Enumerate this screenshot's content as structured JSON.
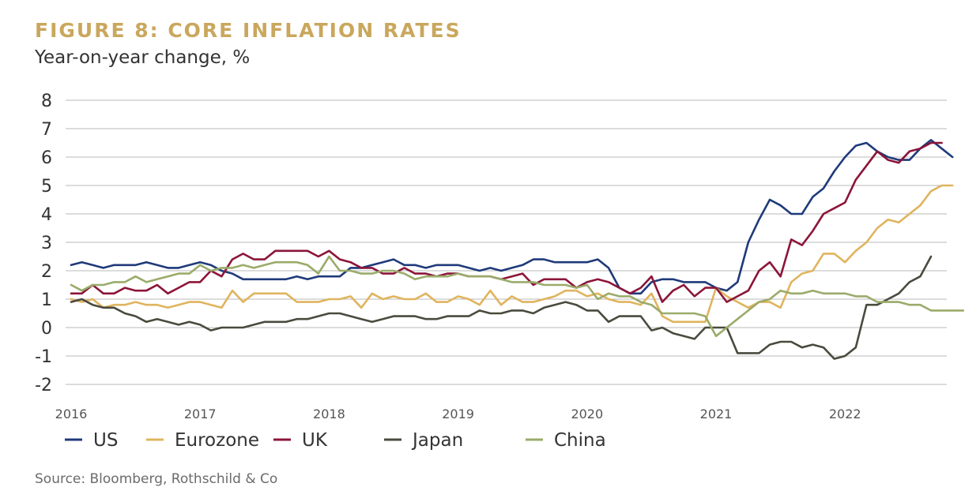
{
  "chart_data": {
    "type": "line",
    "title": "FIGURE 8: CORE INFLATION RATES",
    "subtitle": "Year-on-year change, %",
    "source": "Source: Bloomberg, Rothschild & Co",
    "xlabel": "",
    "ylabel": "Year-on-year change, %",
    "x_start": "2016-01",
    "x_ticks": [
      "2016",
      "2017",
      "2018",
      "2019",
      "2020",
      "2021",
      "2022"
    ],
    "yticks": [
      "8",
      "7",
      "6",
      "5",
      "4",
      "3",
      "2",
      "1",
      "0",
      "-1",
      "-2"
    ],
    "ylim": [
      -2,
      8
    ],
    "grid": true,
    "legend_position": "bottom",
    "series": [
      {
        "name": "US",
        "color": "#1f3a7a",
        "values": [
          2.2,
          2.3,
          2.2,
          2.1,
          2.2,
          2.2,
          2.2,
          2.3,
          2.2,
          2.1,
          2.1,
          2.2,
          2.3,
          2.2,
          2.0,
          1.9,
          1.7,
          1.7,
          1.7,
          1.7,
          1.7,
          1.8,
          1.7,
          1.8,
          1.8,
          1.8,
          2.1,
          2.1,
          2.2,
          2.3,
          2.4,
          2.2,
          2.2,
          2.1,
          2.2,
          2.2,
          2.2,
          2.1,
          2.0,
          2.1,
          2.0,
          2.1,
          2.2,
          2.4,
          2.4,
          2.3,
          2.3,
          2.3,
          2.3,
          2.4,
          2.1,
          1.4,
          1.2,
          1.2,
          1.6,
          1.7,
          1.7,
          1.6,
          1.6,
          1.6,
          1.4,
          1.3,
          1.6,
          3.0,
          3.8,
          4.5,
          4.3,
          4.0,
          4.0,
          4.6,
          4.9,
          5.5,
          6.0,
          6.4,
          6.5,
          6.2,
          6.0,
          5.9,
          5.9,
          6.3,
          6.6,
          6.3,
          6.0
        ]
      },
      {
        "name": "Eurozone",
        "color": "#e0b45e",
        "values": [
          1.0,
          0.9,
          1.0,
          0.7,
          0.8,
          0.8,
          0.9,
          0.8,
          0.8,
          0.7,
          0.8,
          0.9,
          0.9,
          0.8,
          0.7,
          1.3,
          0.9,
          1.2,
          1.2,
          1.2,
          1.2,
          0.9,
          0.9,
          0.9,
          1.0,
          1.0,
          1.1,
          0.7,
          1.2,
          1.0,
          1.1,
          1.0,
          1.0,
          1.2,
          0.9,
          0.9,
          1.1,
          1.0,
          0.8,
          1.3,
          0.8,
          1.1,
          0.9,
          0.9,
          1.0,
          1.1,
          1.3,
          1.3,
          1.1,
          1.2,
          1.0,
          0.9,
          0.9,
          0.8,
          1.2,
          0.4,
          0.2,
          0.2,
          0.2,
          0.2,
          1.4,
          1.1,
          0.9,
          0.7,
          0.9,
          0.9,
          0.7,
          1.6,
          1.9,
          2.0,
          2.6,
          2.6,
          2.3,
          2.7,
          3.0,
          3.5,
          3.8,
          3.7,
          4.0,
          4.3,
          4.8,
          5.0,
          5.0
        ]
      },
      {
        "name": "UK",
        "color": "#8b1538",
        "values": [
          1.2,
          1.2,
          1.5,
          1.2,
          1.2,
          1.4,
          1.3,
          1.3,
          1.5,
          1.2,
          1.4,
          1.6,
          1.6,
          2.0,
          1.8,
          2.4,
          2.6,
          2.4,
          2.4,
          2.7,
          2.7,
          2.7,
          2.7,
          2.5,
          2.7,
          2.4,
          2.3,
          2.1,
          2.1,
          1.9,
          1.9,
          2.1,
          1.9,
          1.9,
          1.8,
          1.9,
          1.9,
          1.8,
          1.8,
          1.8,
          1.7,
          1.8,
          1.9,
          1.5,
          1.7,
          1.7,
          1.7,
          1.4,
          1.6,
          1.7,
          1.6,
          1.4,
          1.2,
          1.4,
          1.8,
          0.9,
          1.3,
          1.5,
          1.1,
          1.4,
          1.4,
          0.9,
          1.1,
          1.3,
          2.0,
          2.3,
          1.8,
          3.1,
          2.9,
          3.4,
          4.0,
          4.2,
          4.4,
          5.2,
          5.7,
          6.2,
          5.9,
          5.8,
          6.2,
          6.3,
          6.5,
          6.5
        ]
      },
      {
        "name": "Japan",
        "color": "#4a4a3e",
        "values": [
          0.9,
          1.0,
          0.8,
          0.7,
          0.7,
          0.5,
          0.4,
          0.2,
          0.3,
          0.2,
          0.1,
          0.2,
          0.1,
          -0.1,
          0.0,
          0.0,
          0.0,
          0.1,
          0.2,
          0.2,
          0.2,
          0.3,
          0.3,
          0.4,
          0.5,
          0.5,
          0.4,
          0.3,
          0.2,
          0.3,
          0.4,
          0.4,
          0.4,
          0.3,
          0.3,
          0.4,
          0.4,
          0.4,
          0.6,
          0.5,
          0.5,
          0.6,
          0.6,
          0.5,
          0.7,
          0.8,
          0.9,
          0.8,
          0.6,
          0.6,
          0.2,
          0.4,
          0.4,
          0.4,
          -0.1,
          0.0,
          -0.2,
          -0.3,
          -0.4,
          0.0,
          0.0,
          0.0,
          -0.9,
          -0.9,
          -0.9,
          -0.6,
          -0.5,
          -0.5,
          -0.7,
          -0.6,
          -0.7,
          -1.1,
          -1.0,
          -0.7,
          0.8,
          0.8,
          1.0,
          1.2,
          1.6,
          1.8,
          2.5
        ]
      },
      {
        "name": "China",
        "color": "#9aab6a",
        "values": [
          1.5,
          1.3,
          1.5,
          1.5,
          1.6,
          1.6,
          1.8,
          1.6,
          1.7,
          1.8,
          1.9,
          1.9,
          2.2,
          2.0,
          2.1,
          2.1,
          2.2,
          2.1,
          2.2,
          2.3,
          2.3,
          2.3,
          2.2,
          1.9,
          2.5,
          2.0,
          2.0,
          1.9,
          1.9,
          2.0,
          2.0,
          1.9,
          1.7,
          1.8,
          1.8,
          1.8,
          1.9,
          1.8,
          1.8,
          1.8,
          1.7,
          1.6,
          1.6,
          1.6,
          1.5,
          1.5,
          1.5,
          1.4,
          1.5,
          1.0,
          1.2,
          1.1,
          1.1,
          0.9,
          0.8,
          0.5,
          0.5,
          0.5,
          0.5,
          0.4,
          -0.3,
          0.0,
          0.3,
          0.6,
          0.9,
          1.0,
          1.3,
          1.2,
          1.2,
          1.3,
          1.2,
          1.2,
          1.2,
          1.1,
          1.1,
          0.9,
          0.9,
          0.9,
          0.8,
          0.8,
          0.6,
          0.6,
          0.6,
          0.6
        ]
      }
    ]
  }
}
